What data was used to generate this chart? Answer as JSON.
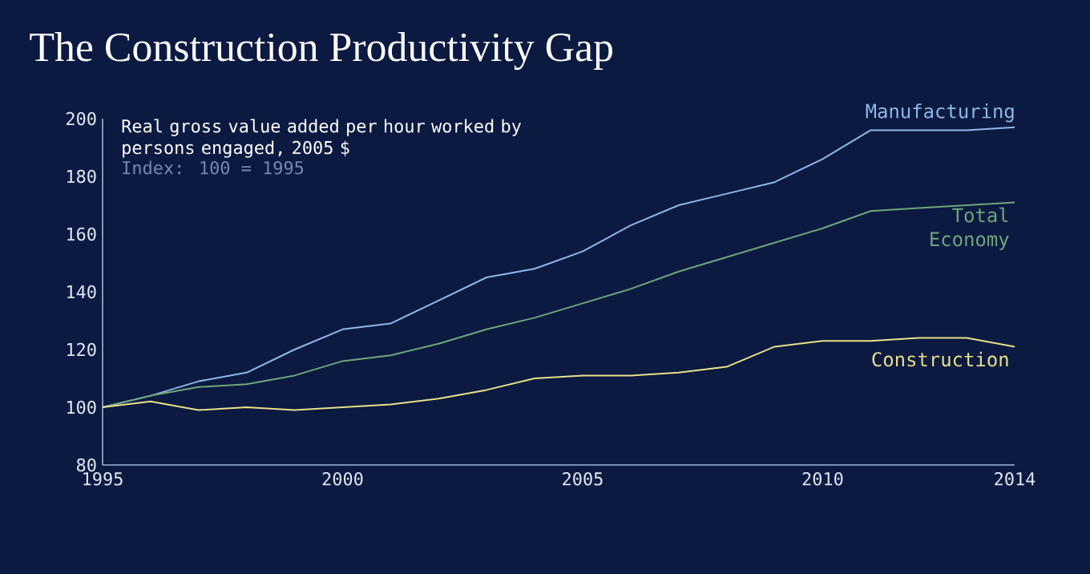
{
  "chart_data": {
    "type": "line",
    "title": "The Construction Productivity Gap",
    "subtitle": "Real gross value added per hour worked by persons engaged, 2005 $",
    "annotations": [
      "Index: 100 = 1995"
    ],
    "x": [
      1995,
      1996,
      1997,
      1998,
      1999,
      2000,
      2001,
      2002,
      2003,
      2004,
      2005,
      2006,
      2007,
      2008,
      2009,
      2010,
      2011,
      2012,
      2013,
      2014
    ],
    "series": [
      {
        "name": "Manufacturing",
        "color": "#8fb8e8",
        "values": [
          100,
          104,
          109,
          112,
          120,
          127,
          129,
          137,
          145,
          148,
          154,
          163,
          170,
          174,
          178,
          186,
          196,
          196,
          196,
          197
        ]
      },
      {
        "name": "Total Economy",
        "color": "#6fa67a",
        "values": [
          100,
          104,
          107,
          108,
          111,
          116,
          118,
          122,
          127,
          131,
          136,
          141,
          147,
          152,
          157,
          162,
          168,
          169,
          170,
          171
        ]
      },
      {
        "name": "Construction",
        "color": "#e8e08a",
        "values": [
          100,
          102,
          99,
          100,
          99,
          100,
          101,
          103,
          106,
          110,
          111,
          111,
          112,
          114,
          121,
          123,
          123,
          124,
          124,
          121
        ]
      }
    ],
    "xlim": [
      1995,
      2014
    ],
    "xticks": [
      1995,
      2000,
      2005,
      2010,
      2014
    ],
    "ylim": [
      80,
      200
    ],
    "yticks": [
      80,
      100,
      120,
      140,
      160,
      180,
      200
    ],
    "grid": false,
    "legend": false,
    "marker": "none",
    "line_style": "solid"
  }
}
